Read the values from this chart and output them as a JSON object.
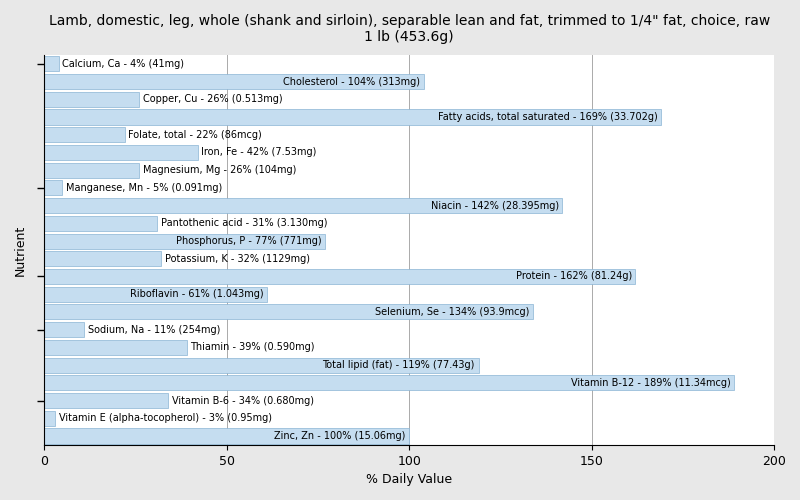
{
  "title": "Lamb, domestic, leg, whole (shank and sirloin), separable lean and fat, trimmed to 1/4\" fat, choice, raw\n1 lb (453.6g)",
  "xlabel": "% Daily Value",
  "ylabel": "Nutrient",
  "nutrients": [
    {
      "name": "Calcium, Ca - 4% (41mg)",
      "value": 4
    },
    {
      "name": "Cholesterol - 104% (313mg)",
      "value": 104
    },
    {
      "name": "Copper, Cu - 26% (0.513mg)",
      "value": 26
    },
    {
      "name": "Fatty acids, total saturated - 169% (33.702g)",
      "value": 169
    },
    {
      "name": "Folate, total - 22% (86mcg)",
      "value": 22
    },
    {
      "name": "Iron, Fe - 42% (7.53mg)",
      "value": 42
    },
    {
      "name": "Magnesium, Mg - 26% (104mg)",
      "value": 26
    },
    {
      "name": "Manganese, Mn - 5% (0.091mg)",
      "value": 5
    },
    {
      "name": "Niacin - 142% (28.395mg)",
      "value": 142
    },
    {
      "name": "Pantothenic acid - 31% (3.130mg)",
      "value": 31
    },
    {
      "name": "Phosphorus, P - 77% (771mg)",
      "value": 77
    },
    {
      "name": "Potassium, K - 32% (1129mg)",
      "value": 32
    },
    {
      "name": "Protein - 162% (81.24g)",
      "value": 162
    },
    {
      "name": "Riboflavin - 61% (1.043mg)",
      "value": 61
    },
    {
      "name": "Selenium, Se - 134% (93.9mcg)",
      "value": 134
    },
    {
      "name": "Sodium, Na - 11% (254mg)",
      "value": 11
    },
    {
      "name": "Thiamin - 39% (0.590mg)",
      "value": 39
    },
    {
      "name": "Total lipid (fat) - 119% (77.43g)",
      "value": 119
    },
    {
      "name": "Vitamin B-12 - 189% (11.34mcg)",
      "value": 189
    },
    {
      "name": "Vitamin B-6 - 34% (0.680mg)",
      "value": 34
    },
    {
      "name": "Vitamin E (alpha-tocopherol) - 3% (0.95mg)",
      "value": 3
    },
    {
      "name": "Zinc, Zn - 100% (15.06mg)",
      "value": 100
    }
  ],
  "bar_color": "#c5ddf0",
  "bar_edge_color": "#8ab4d4",
  "bg_color": "#e8e8e8",
  "plot_bg_color": "#ffffff",
  "xlim": [
    0,
    200
  ],
  "xticks": [
    0,
    50,
    100,
    150,
    200
  ],
  "figsize": [
    8.0,
    5.0
  ],
  "dpi": 100,
  "title_fontsize": 10,
  "label_fontsize": 7.0,
  "axis_label_fontsize": 9,
  "tick_fontsize": 9,
  "ytick_positions": [
    0,
    7,
    12,
    15,
    19
  ],
  "bar_height": 0.85
}
